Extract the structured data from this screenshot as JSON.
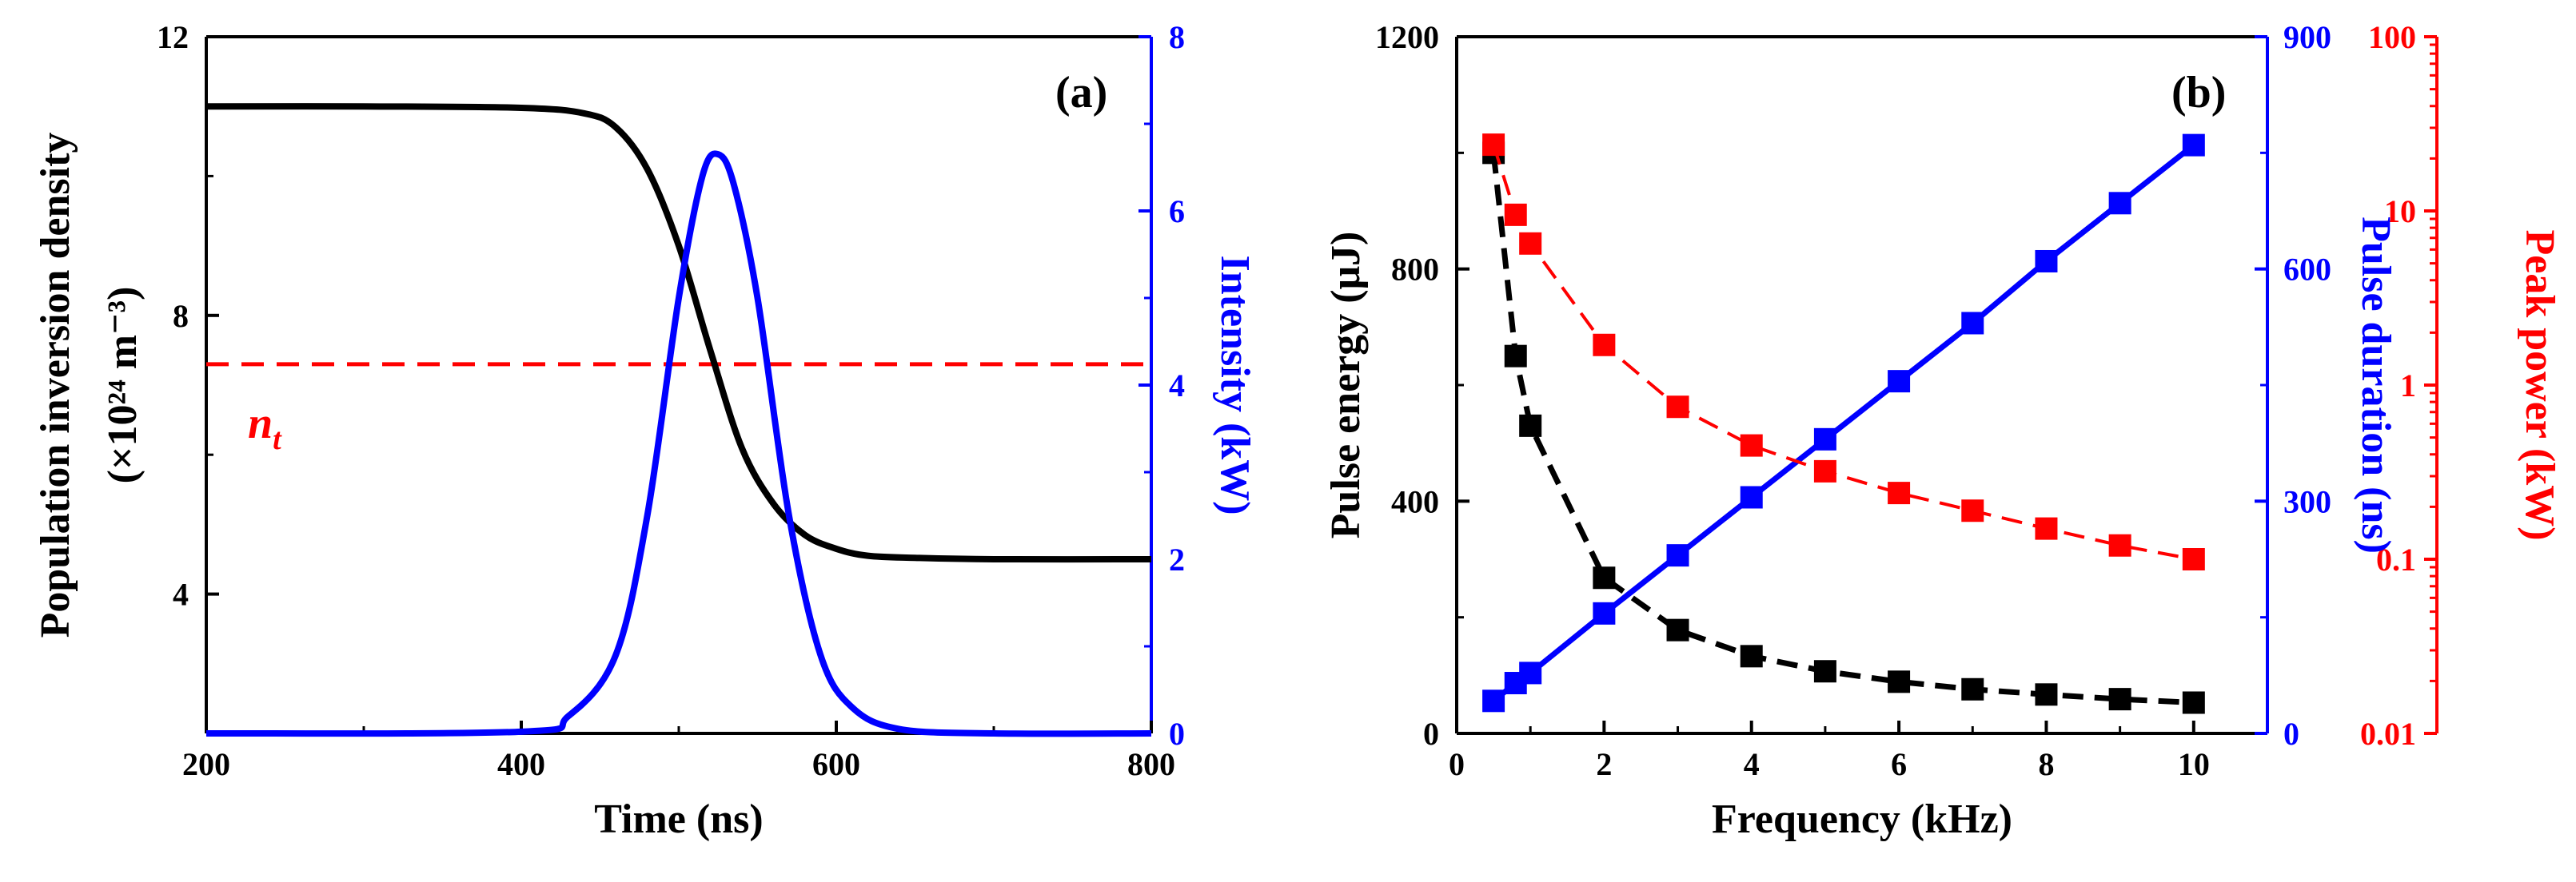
{
  "chart_data": [
    {
      "panel": "(a)",
      "type": "line",
      "xlabel": "Time (ns)",
      "ylabel": "Population inversion density",
      "ylabel_unit": "(×10²⁴ m⁻³)",
      "ylabel_right": "Intensity (kW)",
      "xlim": [
        200,
        800
      ],
      "ylim": [
        2,
        12
      ],
      "ylim_right": [
        0,
        8
      ],
      "xticks": [
        200,
        400,
        600,
        800
      ],
      "yticks": [
        4,
        8,
        12
      ],
      "yticks_right": [
        0,
        2,
        4,
        6,
        8
      ],
      "series": [
        {
          "name": "Population inversion density",
          "axis": "left",
          "color": "#000000",
          "x": [
            200,
            300,
            400,
            440,
            460,
            480,
            500,
            520,
            540,
            560,
            580,
            600,
            620,
            650,
            700,
            800
          ],
          "values": [
            11.0,
            11.0,
            10.98,
            10.9,
            10.7,
            10.1,
            9.0,
            7.5,
            6.1,
            5.3,
            4.85,
            4.65,
            4.55,
            4.52,
            4.5,
            4.5
          ]
        },
        {
          "name": "Intensity",
          "axis": "right",
          "color": "#0000ff",
          "x": [
            200,
            400,
            430,
            460,
            480,
            500,
            515,
            525,
            535,
            550,
            570,
            590,
            610,
            640,
            700,
            800
          ],
          "values": [
            0,
            0.02,
            0.2,
            0.9,
            2.5,
            5.0,
            6.4,
            6.65,
            6.3,
            5.0,
            2.5,
            0.9,
            0.3,
            0.05,
            0,
            0
          ]
        }
      ],
      "threshold": {
        "label": "n",
        "subscript": "t",
        "value": 7.3,
        "color": "#ff0000",
        "style": "dashed"
      }
    },
    {
      "panel": "(b)",
      "type": "scatter",
      "xlabel": "Frequency (kHz)",
      "ylabel": "Pulse energy (μJ)",
      "ylabel_right": "Pulse duration (ns)",
      "ylabel_right2": "Peak power (kW)",
      "xlim": [
        0,
        11
      ],
      "ylim": [
        0,
        1200
      ],
      "ylim_right": [
        0,
        900
      ],
      "ylim_right2": [
        0.01,
        100
      ],
      "yscale_right2": "log",
      "xticks": [
        0,
        2,
        4,
        6,
        8,
        10
      ],
      "yticks": [
        0,
        400,
        800,
        1200
      ],
      "yticks_right": [
        0,
        300,
        600,
        900
      ],
      "yticks_right2": [
        "0.01",
        "0.1",
        "1",
        "10",
        "100"
      ],
      "x": [
        0.5,
        0.8,
        1,
        2,
        3,
        4,
        5,
        6,
        7,
        8,
        9,
        10
      ],
      "series": [
        {
          "name": "Pulse energy",
          "axis": "left",
          "color": "#000000",
          "values": [
            1000,
            650,
            530,
            268,
            178,
            133,
            107,
            89,
            76,
            67,
            59,
            53
          ]
        },
        {
          "name": "Pulse duration",
          "axis": "right",
          "color": "#0000ff",
          "values": [
            42,
            65,
            78,
            155,
            230,
            305,
            380,
            455,
            530,
            610,
            685,
            760
          ]
        },
        {
          "name": "Peak power",
          "axis": "right2",
          "color": "#ff0000",
          "values": [
            24.0,
            9.5,
            6.5,
            1.7,
            0.75,
            0.45,
            0.32,
            0.24,
            0.19,
            0.15,
            0.12,
            0.1
          ]
        }
      ]
    }
  ]
}
